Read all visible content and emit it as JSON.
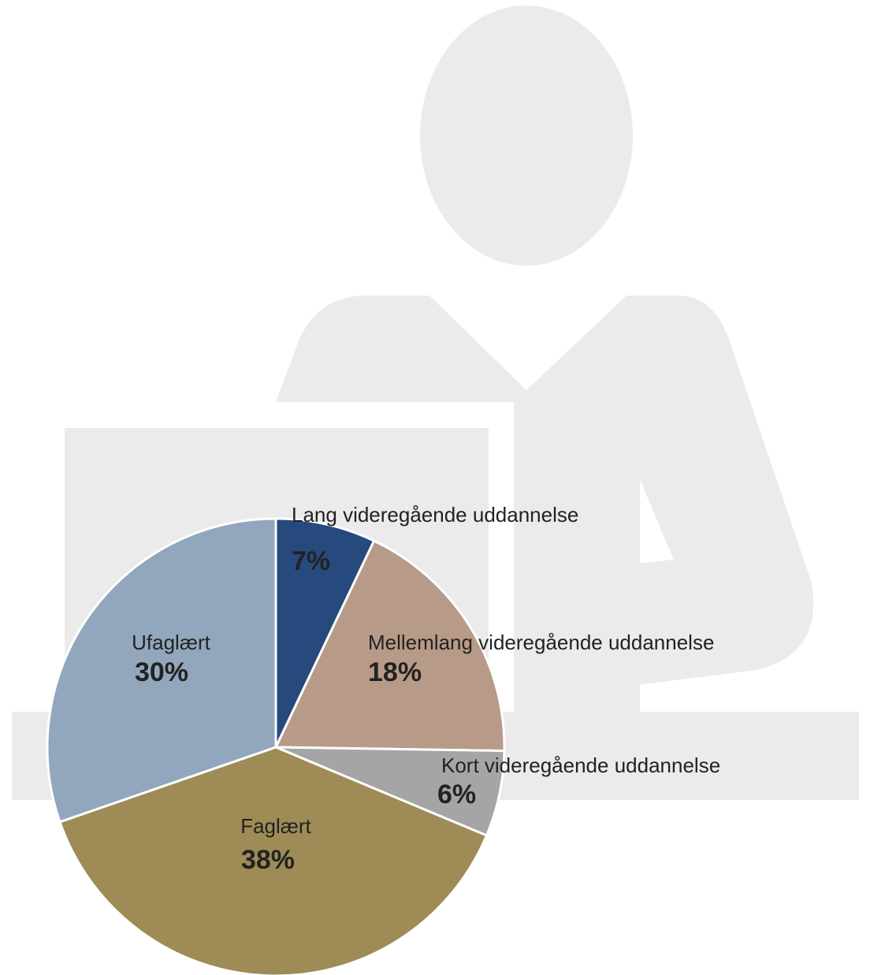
{
  "chart_data": {
    "type": "pie",
    "categories": [
      "Lang videregående uddannelse",
      "Mellemlang videregående uddannelse",
      "Kort videregående uddannelse",
      "Faglært",
      "Ufaglært"
    ],
    "values": [
      7,
      18,
      6,
      38,
      30
    ],
    "value_labels": [
      "7%",
      "18%",
      "6%",
      "38%",
      "30%"
    ],
    "colors": [
      "#264a7e",
      "#b89a88",
      "#a5a5a5",
      "#9e8b56",
      "#92a7bd"
    ]
  }
}
